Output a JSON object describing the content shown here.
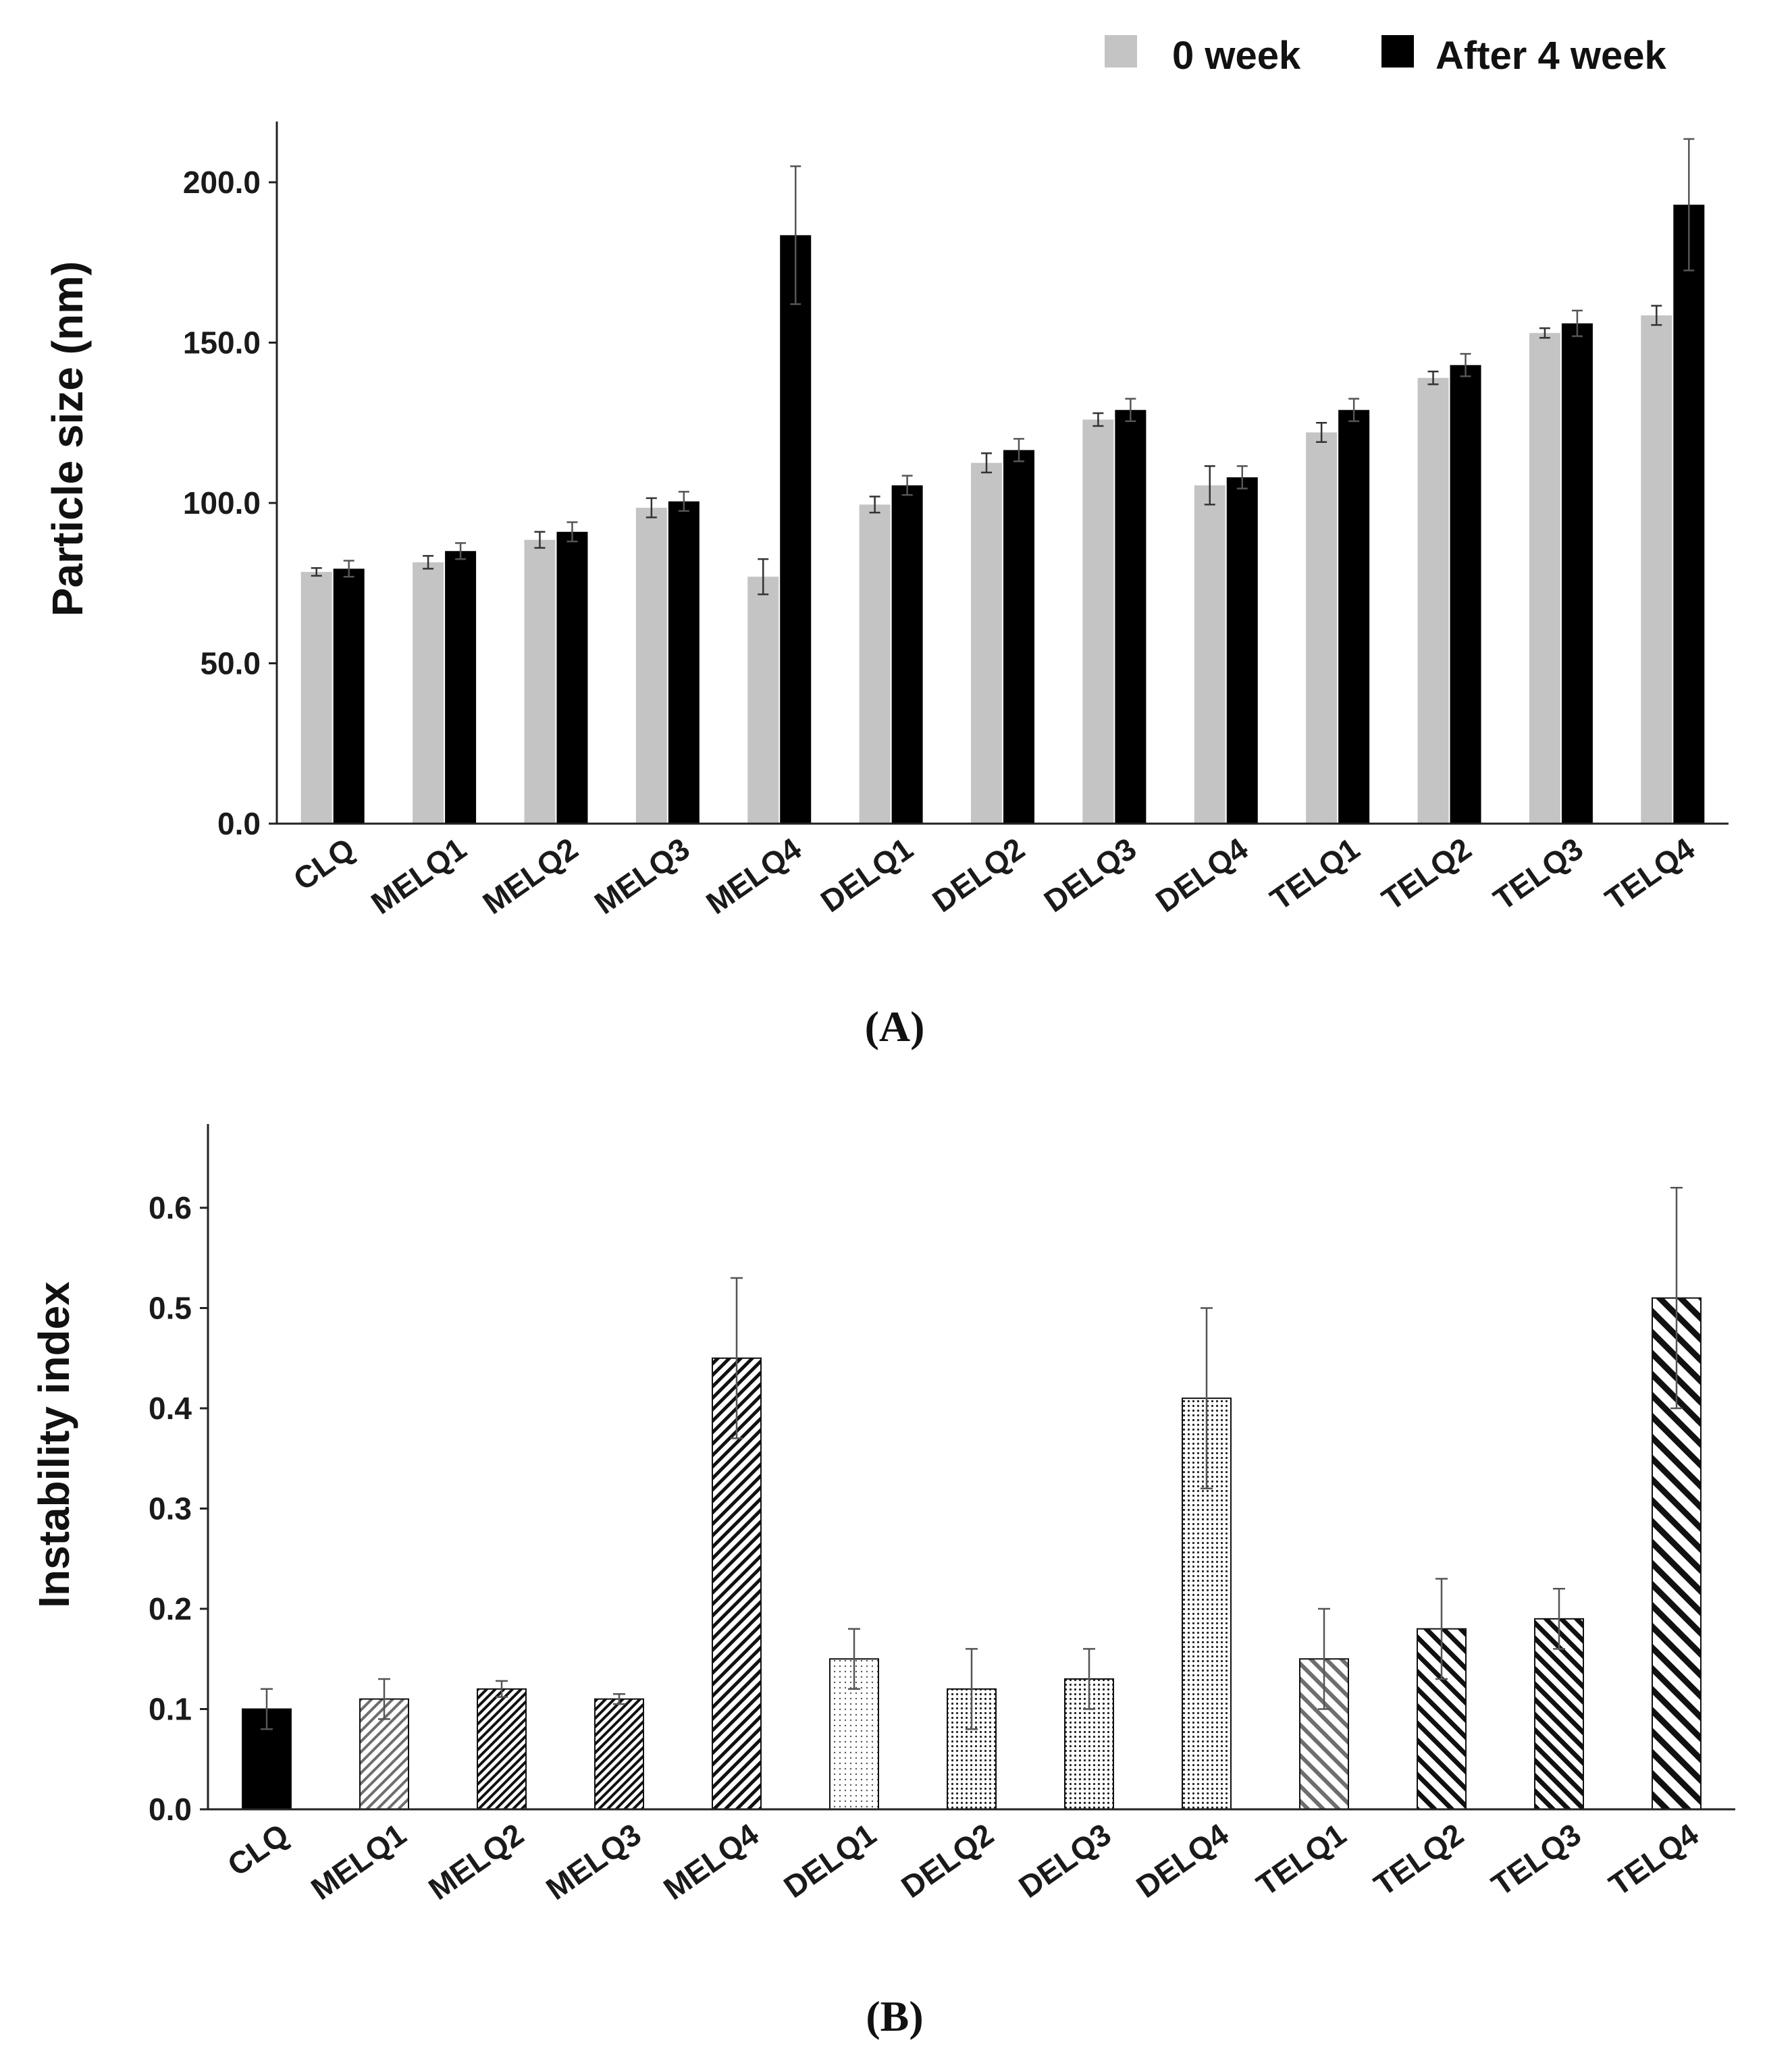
{
  "chart_data": [
    {
      "type": "bar",
      "panel_label": "(A)",
      "title": "",
      "xlabel": "",
      "ylabel": "Particle size (nm)",
      "ylim": [
        0,
        220
      ],
      "yticks": [
        0,
        50,
        100,
        150,
        200
      ],
      "ytick_labels": [
        "0.0",
        "50.0",
        "100.0",
        "150.0",
        "200.0"
      ],
      "legend_position": "top-right",
      "categories": [
        "CLQ",
        "MELQ1",
        "MELQ2",
        "MELQ3",
        "MELQ4",
        "DELQ1",
        "DELQ2",
        "DELQ3",
        "DELQ4",
        "TELQ1",
        "TELQ2",
        "TELQ3",
        "TELQ4"
      ],
      "series": [
        {
          "name": "0 week",
          "color": "#c4c4c4",
          "values": [
            78.5,
            81.5,
            88.5,
            98.5,
            77,
            99.5,
            112.5,
            126,
            105.5,
            122,
            139,
            153,
            158.5
          ],
          "errors": [
            1.2,
            2,
            2.5,
            3,
            5.5,
            2.5,
            3,
            2,
            6,
            3,
            2,
            1.5,
            3
          ]
        },
        {
          "name": "After 4 week",
          "color": "#000000",
          "values": [
            79.5,
            85,
            91,
            100.5,
            183.5,
            105.5,
            116.5,
            129,
            108,
            129,
            143,
            156,
            193
          ],
          "errors": [
            2.5,
            2.5,
            3,
            3,
            21.5,
            3,
            3.5,
            3.5,
            3.5,
            3.5,
            3.5,
            4,
            20.5
          ]
        }
      ]
    },
    {
      "type": "bar",
      "panel_label": "(B)",
      "title": "",
      "xlabel": "",
      "ylabel": "Instability index",
      "ylim": [
        0,
        0.67
      ],
      "yticks": [
        0,
        0.1,
        0.2,
        0.3,
        0.4,
        0.5,
        0.6
      ],
      "ytick_labels": [
        "0.0",
        "0.1",
        "0.2",
        "0.3",
        "0.4",
        "0.5",
        "0.6"
      ],
      "categories": [
        "CLQ",
        "MELQ1",
        "MELQ2",
        "MELQ3",
        "MELQ4",
        "DELQ1",
        "DELQ2",
        "DELQ3",
        "DELQ4",
        "TELQ1",
        "TELQ2",
        "TELQ3",
        "TELQ4"
      ],
      "values": [
        0.1,
        0.11,
        0.12,
        0.11,
        0.45,
        0.15,
        0.12,
        0.13,
        0.41,
        0.15,
        0.18,
        0.19,
        0.51
      ],
      "errors": [
        0.02,
        0.02,
        0.008,
        0.005,
        0.08,
        0.03,
        0.04,
        0.03,
        0.09,
        0.05,
        0.05,
        0.03,
        0.11
      ],
      "fill_patterns": [
        "solid-black",
        "diag-left-fine-gray",
        "diag-left-dense",
        "diag-left-dense",
        "diag-left-medium",
        "dots-light",
        "dots-medium",
        "dots-medium",
        "dots-medium",
        "diag-right-gray",
        "diag-right-medium",
        "diag-right-dense",
        "diag-right-bold"
      ]
    }
  ]
}
